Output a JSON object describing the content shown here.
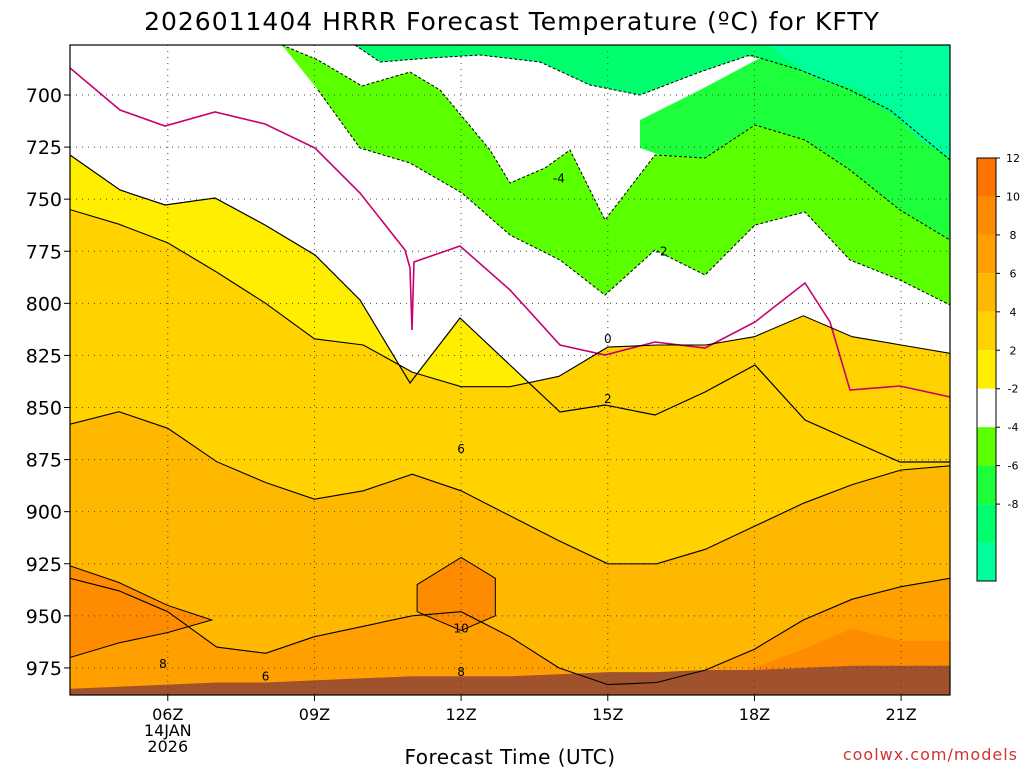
{
  "chart_data": {
    "type": "heatmap",
    "title": "2026011404 HRRR Forecast Temperature (ºC) for KFTY",
    "xlabel": "Forecast Time (UTC)",
    "ylabel": "",
    "x_ticks": [
      {
        "hour": 6,
        "label": "06Z",
        "date_line1": "14JAN",
        "date_line2": "2026"
      },
      {
        "hour": 9,
        "label": "09Z"
      },
      {
        "hour": 12,
        "label": "12Z"
      },
      {
        "hour": 15,
        "label": "15Z"
      },
      {
        "hour": 18,
        "label": "18Z"
      },
      {
        "hour": 21,
        "label": "21Z"
      }
    ],
    "x_range_hours": [
      4,
      22
    ],
    "y_scale": "pressure (hPa), decreasing upward",
    "y_ticks": [
      700,
      725,
      750,
      775,
      800,
      825,
      850,
      875,
      900,
      925,
      950,
      975
    ],
    "y_range_hPa": [
      676,
      988
    ],
    "grid": true,
    "colorbar": {
      "ticks": [
        12,
        10,
        8,
        6,
        4,
        2,
        -2,
        -4,
        -6,
        -8
      ],
      "bands": [
        {
          "from": 12,
          "to": 14,
          "color": "#ff7400"
        },
        {
          "from": 10,
          "to": 12,
          "color": "#ff8c00"
        },
        {
          "from": 8,
          "to": 10,
          "color": "#ffa000"
        },
        {
          "from": 6,
          "to": 8,
          "color": "#ffb800"
        },
        {
          "from": 4,
          "to": 6,
          "color": "#ffd200"
        },
        {
          "from": 2,
          "to": 4,
          "color": "#ffee00"
        },
        {
          "from": -2,
          "to": 2,
          "color": "#ffffff"
        },
        {
          "from": -4,
          "to": -2,
          "color": "#5aff00"
        },
        {
          "from": -6,
          "to": -4,
          "color": "#1eff3c"
        },
        {
          "from": -8,
          "to": -6,
          "color": "#00ff6e"
        },
        {
          "from": -10,
          "to": -8,
          "color": "#00ff9a"
        }
      ]
    },
    "contour_labels": [
      {
        "value": "-4",
        "hour": 14.0,
        "hPa": 740
      },
      {
        "value": "-2",
        "hour": 16.1,
        "hPa": 775
      },
      {
        "value": "0",
        "hour": 15.0,
        "hPa": 817
      },
      {
        "value": "2",
        "hour": 15.0,
        "hPa": 846
      },
      {
        "value": "6",
        "hour": 12.0,
        "hPa": 870
      },
      {
        "value": "8",
        "hour": 5.9,
        "hPa": 973
      },
      {
        "value": "6",
        "hour": 8.0,
        "hPa": 979
      },
      {
        "value": "10",
        "hour": 12.0,
        "hPa": 956
      },
      {
        "value": "8",
        "hour": 12.0,
        "hPa": 977
      }
    ],
    "series": [
      {
        "value": 6,
        "points": [
          [
            4,
            755
          ],
          [
            5,
            762
          ],
          [
            6,
            771
          ],
          [
            7,
            785
          ],
          [
            8,
            800
          ],
          [
            9,
            817
          ],
          [
            10,
            820
          ],
          [
            11,
            833
          ],
          [
            12,
            840
          ],
          [
            13,
            840
          ],
          [
            14,
            835
          ],
          [
            15,
            821
          ],
          [
            16,
            820
          ],
          [
            17,
            820
          ],
          [
            18,
            816
          ],
          [
            19,
            806
          ],
          [
            20,
            816
          ],
          [
            21,
            820
          ],
          [
            22,
            824
          ]
        ]
      },
      {
        "value": 8,
        "points": [
          [
            4,
            858
          ],
          [
            5,
            852
          ],
          [
            6,
            860
          ],
          [
            7,
            876
          ],
          [
            8,
            886
          ],
          [
            9,
            894
          ],
          [
            10,
            890
          ],
          [
            11,
            882
          ],
          [
            12,
            890
          ],
          [
            13,
            902
          ],
          [
            14,
            914
          ],
          [
            15,
            925
          ],
          [
            16,
            925
          ],
          [
            17,
            918
          ],
          [
            18,
            907
          ],
          [
            19,
            896
          ],
          [
            20,
            887
          ],
          [
            21,
            880
          ],
          [
            22,
            878
          ]
        ]
      },
      {
        "value": 10,
        "points": [
          [
            4,
            932
          ],
          [
            5,
            938
          ],
          [
            6,
            948
          ],
          [
            7,
            965
          ],
          [
            8,
            968
          ],
          [
            9,
            960
          ],
          [
            10,
            955
          ],
          [
            11,
            950
          ],
          [
            12,
            948
          ],
          [
            13,
            960
          ],
          [
            14,
            975
          ],
          [
            15,
            983
          ],
          [
            16,
            982
          ],
          [
            17,
            976
          ],
          [
            18,
            966
          ],
          [
            19,
            952
          ],
          [
            20,
            942
          ],
          [
            21,
            936
          ],
          [
            22,
            932
          ]
        ]
      }
    ],
    "surface_hPa": [
      985,
      984,
      983,
      982,
      982,
      981,
      980,
      979,
      979,
      979,
      978,
      977,
      977,
      976,
      976,
      975,
      974,
      974,
      974
    ]
  },
  "watermark": "coolwx.com/models"
}
